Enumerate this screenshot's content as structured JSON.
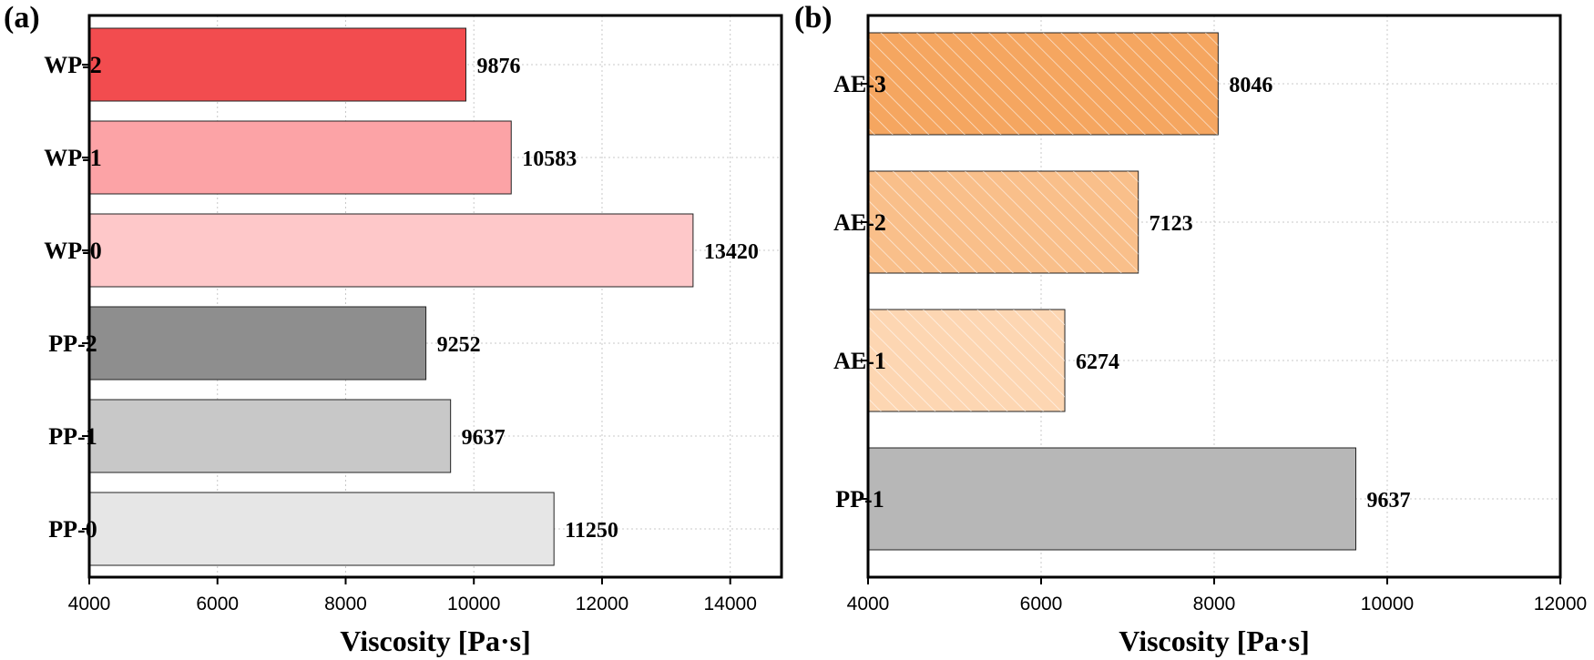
{
  "chart_data": [
    {
      "type": "bar",
      "orientation": "horizontal",
      "panel_label": "(a)",
      "categories": [
        "WP-2",
        "WP-1",
        "WP-0",
        "PP-2",
        "PP-1",
        "PP-0"
      ],
      "values": [
        9876,
        10583,
        13420,
        9252,
        9637,
        11250
      ],
      "value_labels": [
        "9876",
        "10583",
        "13420",
        "9252",
        "9637",
        "11250"
      ],
      "colors": [
        "#f24c4f",
        "#fca3a6",
        "#fec8c9",
        "#8e8e8e",
        "#c8c8c8",
        "#e6e6e6"
      ],
      "xlabel": "Viscosity [Pa·s]",
      "xlim": [
        4000,
        14800
      ],
      "xticks": [
        4000,
        6000,
        8000,
        10000,
        12000,
        14000
      ],
      "xtick_labels": [
        "4000",
        "6000",
        "8000",
        "10000",
        "12000",
        "14000"
      ],
      "grid": true
    },
    {
      "type": "bar",
      "orientation": "horizontal",
      "panel_label": "(b)",
      "categories": [
        "AE-3",
        "AE-2",
        "AE-1",
        "PP-1"
      ],
      "values": [
        8046,
        7123,
        6274,
        9637
      ],
      "value_labels": [
        "8046",
        "7123",
        "6274",
        "9637"
      ],
      "colors": [
        "#f5a660",
        "#f9bf8a",
        "#fdd6b2",
        "#b7b7b7"
      ],
      "hatched": [
        true,
        true,
        true,
        false
      ],
      "xlabel": "Viscosity [Pa·s]",
      "xlim": [
        4000,
        12000
      ],
      "xticks": [
        4000,
        6000,
        8000,
        10000,
        12000
      ],
      "xtick_labels": [
        "4000",
        "6000",
        "8000",
        "10000",
        "12000"
      ],
      "grid": true
    }
  ]
}
